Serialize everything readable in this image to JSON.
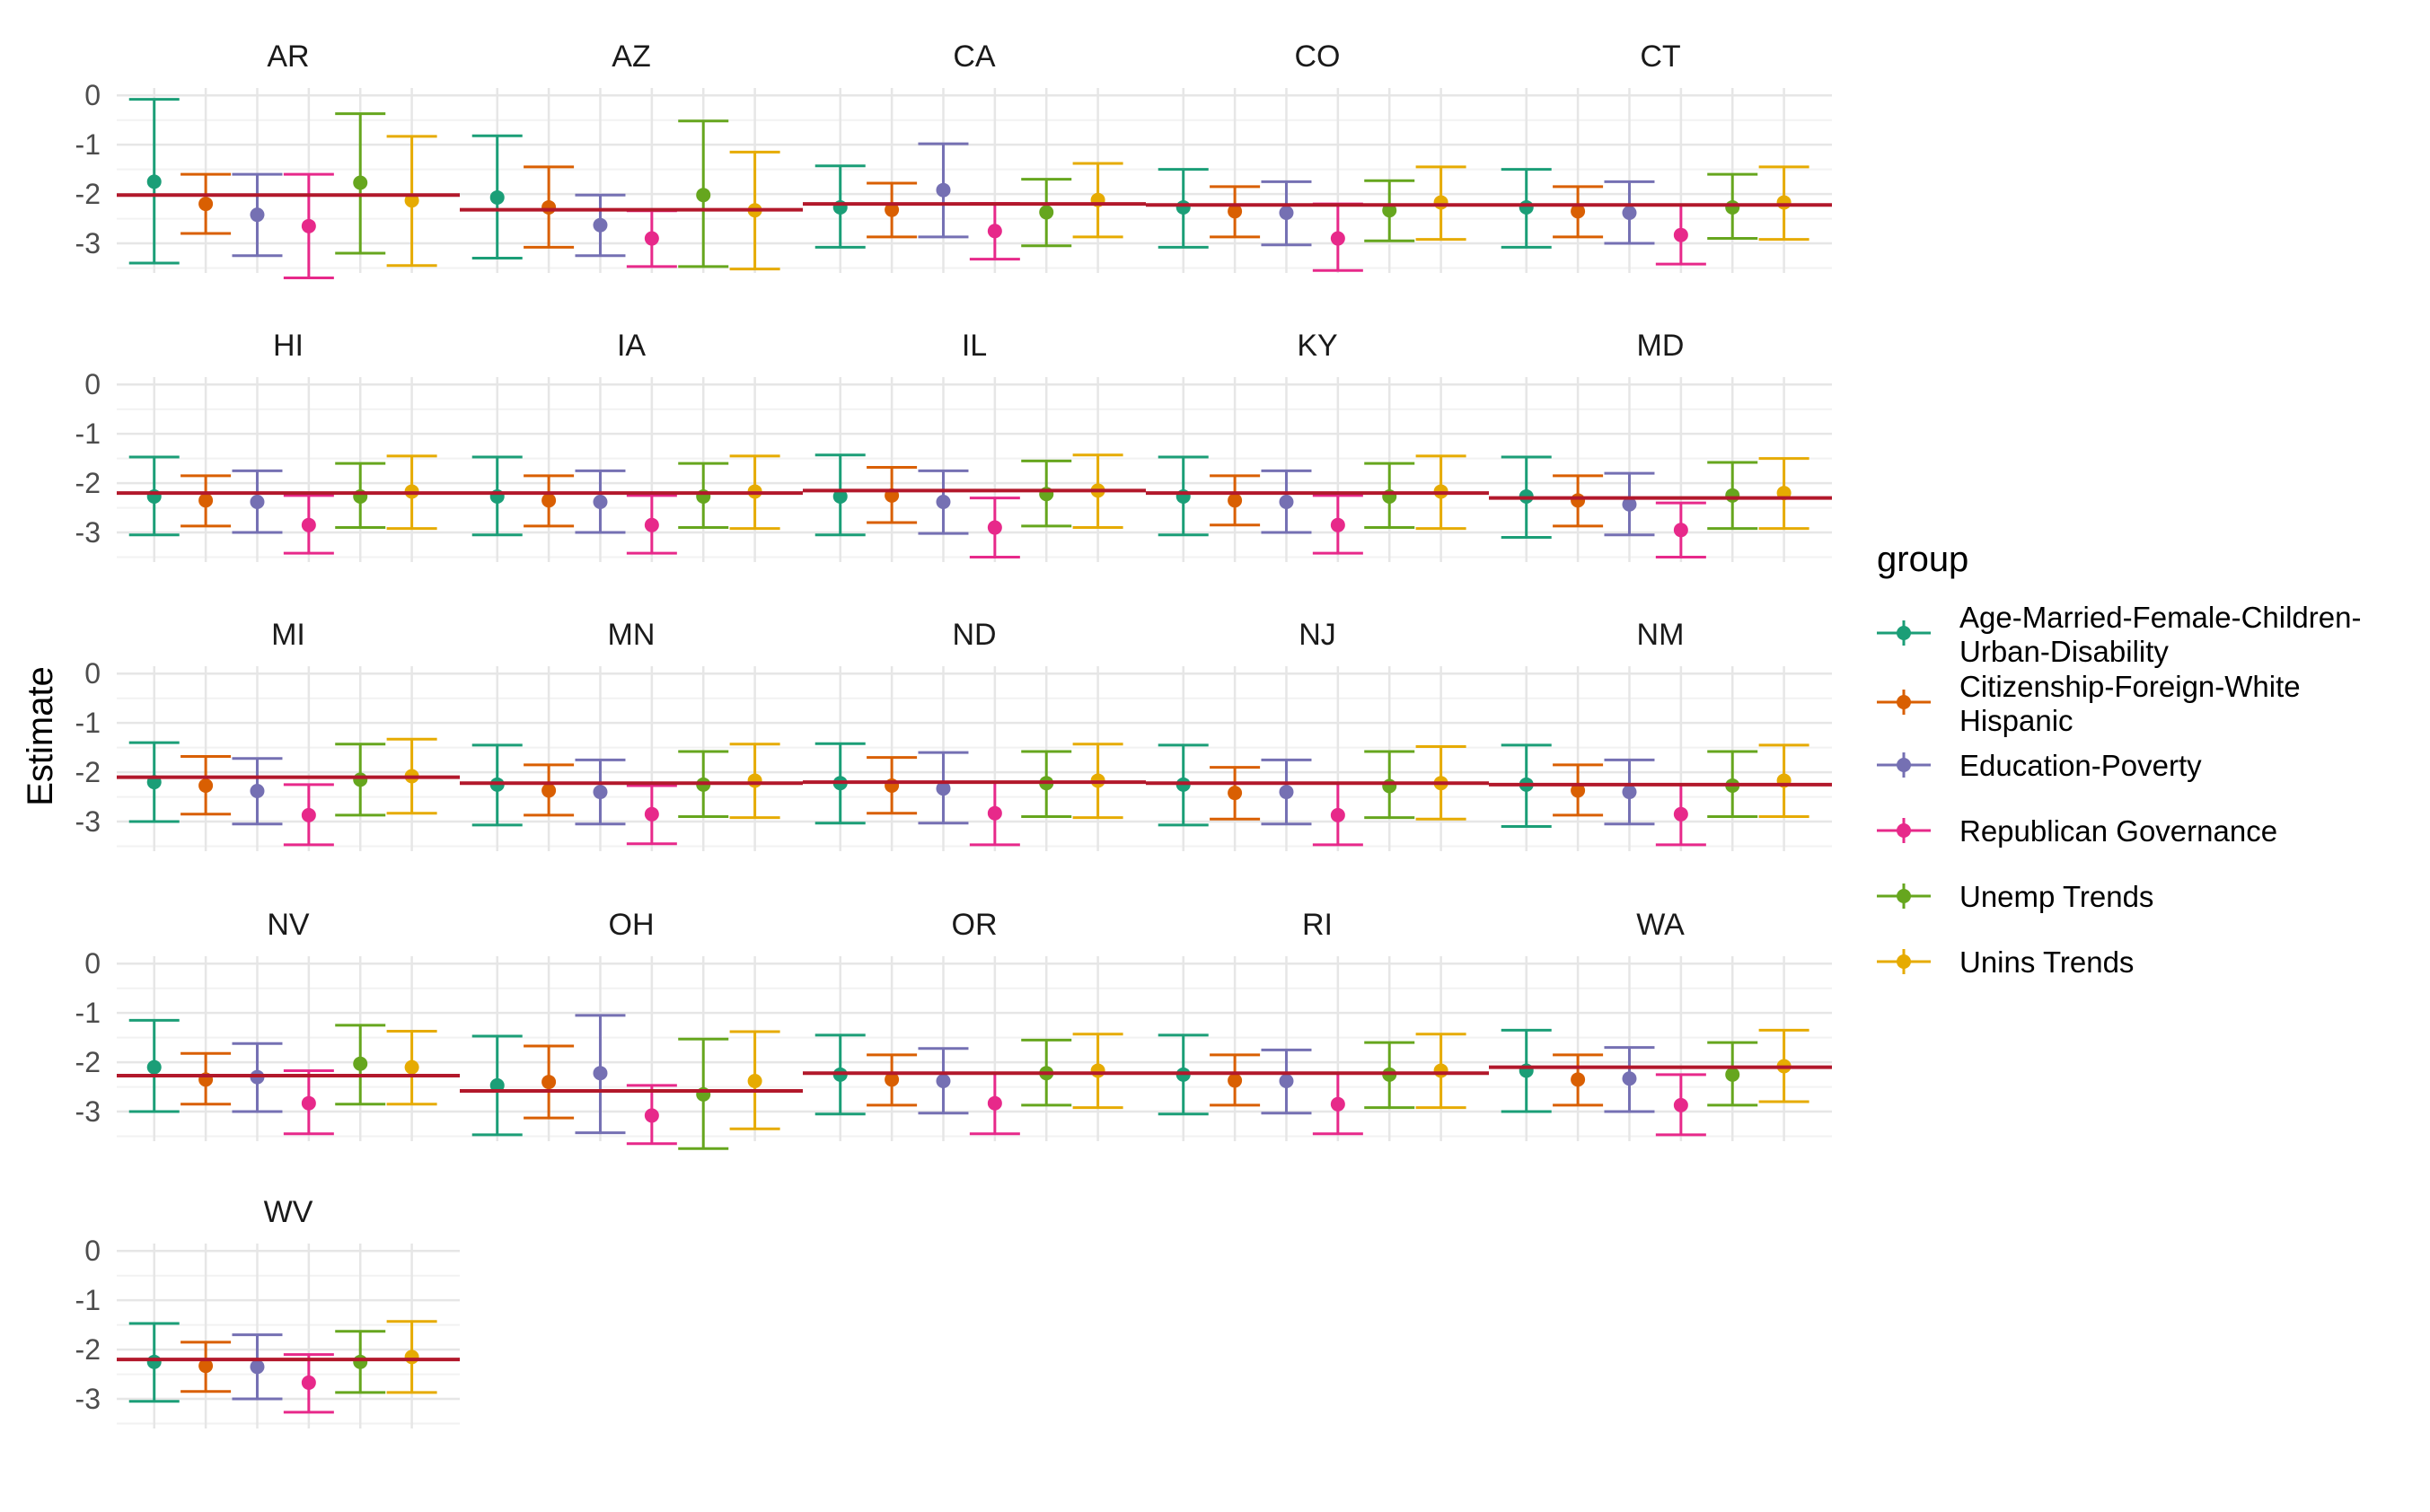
{
  "chart_data": {
    "type": "errorbar-facets",
    "ylabel": "Estimate",
    "ylim": [
      -3.6,
      0.15
    ],
    "yticks": [
      0,
      -1,
      -2,
      -3
    ],
    "ytick_labels": [
      "0",
      "-1",
      "-2",
      "-3"
    ],
    "grid": true,
    "legend": {
      "title": "group",
      "placement": "right",
      "entries": [
        {
          "lines": [
            "Age-Married-Female-Children-",
            "Urban-Disability"
          ],
          "color": "#1b9e77"
        },
        {
          "lines": [
            "Citizenship-Foreign-White",
            "Hispanic"
          ],
          "color": "#d95f02"
        },
        {
          "lines": [
            "Education-Poverty"
          ],
          "color": "#7570b3"
        },
        {
          "lines": [
            "Republican Governance"
          ],
          "color": "#e7298a"
        },
        {
          "lines": [
            "Unemp Trends"
          ],
          "color": "#66a61e"
        },
        {
          "lines": [
            "Unins Trends"
          ],
          "color": "#e6ab02"
        }
      ]
    },
    "reference_line_color": "#b2182b",
    "groups": [
      "Age-Married-Female-Children-Urban-Disability",
      "Citizenship-Foreign-White Hispanic",
      "Education-Poverty",
      "Republican Governance",
      "Unemp Trends",
      "Unins Trends"
    ],
    "facets": [
      {
        "state": "AR",
        "ref": -2.02,
        "est": [
          -1.75,
          -2.2,
          -2.42,
          -2.65,
          -1.77,
          -2.13
        ],
        "low": [
          -3.4,
          -2.8,
          -3.25,
          -3.7,
          -3.2,
          -3.45
        ],
        "high": [
          -0.08,
          -1.6,
          -1.6,
          -1.6,
          -0.37,
          -0.83
        ]
      },
      {
        "state": "AZ",
        "ref": -2.32,
        "est": [
          -2.07,
          -2.27,
          -2.63,
          -2.9,
          -2.02,
          -2.33
        ],
        "low": [
          -3.3,
          -3.08,
          -3.25,
          -3.47,
          -3.47,
          -3.52
        ],
        "high": [
          -0.82,
          -1.45,
          -2.02,
          -2.34,
          -0.52,
          -1.15
        ]
      },
      {
        "state": "CA",
        "ref": -2.2,
        "est": [
          -2.27,
          -2.32,
          -1.92,
          -2.75,
          -2.37,
          -2.12
        ],
        "low": [
          -3.08,
          -2.87,
          -2.87,
          -3.32,
          -3.05,
          -2.87
        ],
        "high": [
          -1.43,
          -1.78,
          -0.98,
          -2.19,
          -1.7,
          -1.38
        ]
      },
      {
        "state": "CO",
        "ref": -2.22,
        "est": [
          -2.27,
          -2.35,
          -2.38,
          -2.9,
          -2.33,
          -2.17
        ],
        "low": [
          -3.08,
          -2.87,
          -3.03,
          -3.55,
          -2.95,
          -2.92
        ],
        "high": [
          -1.5,
          -1.85,
          -1.75,
          -2.2,
          -1.73,
          -1.45
        ]
      },
      {
        "state": "CT",
        "ref": -2.22,
        "est": [
          -2.27,
          -2.35,
          -2.38,
          -2.83,
          -2.27,
          -2.17
        ],
        "low": [
          -3.08,
          -2.87,
          -3.0,
          -3.42,
          -2.9,
          -2.92
        ],
        "high": [
          -1.5,
          -1.85,
          -1.75,
          -2.22,
          -1.6,
          -1.45
        ]
      },
      {
        "state": "HI",
        "ref": -2.2,
        "est": [
          -2.27,
          -2.35,
          -2.38,
          -2.85,
          -2.27,
          -2.17
        ],
        "low": [
          -3.05,
          -2.87,
          -3.0,
          -3.42,
          -2.9,
          -2.92
        ],
        "high": [
          -1.47,
          -1.85,
          -1.75,
          -2.25,
          -1.6,
          -1.45
        ]
      },
      {
        "state": "IA",
        "ref": -2.2,
        "est": [
          -2.27,
          -2.35,
          -2.38,
          -2.85,
          -2.27,
          -2.17
        ],
        "low": [
          -3.05,
          -2.87,
          -3.0,
          -3.42,
          -2.9,
          -2.92
        ],
        "high": [
          -1.47,
          -1.85,
          -1.75,
          -2.25,
          -1.6,
          -1.45
        ]
      },
      {
        "state": "IL",
        "ref": -2.15,
        "est": [
          -2.27,
          -2.25,
          -2.38,
          -2.9,
          -2.22,
          -2.15
        ],
        "low": [
          -3.05,
          -2.8,
          -3.02,
          -3.5,
          -2.87,
          -2.9
        ],
        "high": [
          -1.43,
          -1.68,
          -1.75,
          -2.3,
          -1.55,
          -1.43
        ]
      },
      {
        "state": "KY",
        "ref": -2.2,
        "est": [
          -2.27,
          -2.35,
          -2.38,
          -2.85,
          -2.27,
          -2.17
        ],
        "low": [
          -3.05,
          -2.85,
          -3.0,
          -3.42,
          -2.9,
          -2.92
        ],
        "high": [
          -1.47,
          -1.85,
          -1.75,
          -2.25,
          -1.6,
          -1.45
        ]
      },
      {
        "state": "MD",
        "ref": -2.3,
        "est": [
          -2.27,
          -2.35,
          -2.43,
          -2.95,
          -2.25,
          -2.2
        ],
        "low": [
          -3.1,
          -2.87,
          -3.05,
          -3.5,
          -2.92,
          -2.92
        ],
        "high": [
          -1.47,
          -1.85,
          -1.8,
          -2.4,
          -1.58,
          -1.5
        ]
      },
      {
        "state": "MI",
        "ref": -2.1,
        "est": [
          -2.2,
          -2.27,
          -2.38,
          -2.87,
          -2.15,
          -2.08
        ],
        "low": [
          -3.0,
          -2.85,
          -3.05,
          -3.47,
          -2.87,
          -2.83
        ],
        "high": [
          -1.4,
          -1.68,
          -1.72,
          -2.25,
          -1.43,
          -1.33
        ]
      },
      {
        "state": "MN",
        "ref": -2.22,
        "est": [
          -2.25,
          -2.37,
          -2.4,
          -2.85,
          -2.25,
          -2.17
        ],
        "low": [
          -3.07,
          -2.87,
          -3.05,
          -3.45,
          -2.9,
          -2.92
        ],
        "high": [
          -1.45,
          -1.85,
          -1.75,
          -2.27,
          -1.58,
          -1.43
        ]
      },
      {
        "state": "ND",
        "ref": -2.2,
        "est": [
          -2.22,
          -2.27,
          -2.33,
          -2.83,
          -2.22,
          -2.17
        ],
        "low": [
          -3.03,
          -2.83,
          -3.03,
          -3.47,
          -2.9,
          -2.92
        ],
        "high": [
          -1.42,
          -1.7,
          -1.6,
          -2.2,
          -1.58,
          -1.43
        ]
      },
      {
        "state": "NJ",
        "ref": -2.22,
        "est": [
          -2.25,
          -2.42,
          -2.4,
          -2.87,
          -2.28,
          -2.22
        ],
        "low": [
          -3.07,
          -2.95,
          -3.05,
          -3.47,
          -2.92,
          -2.95
        ],
        "high": [
          -1.45,
          -1.9,
          -1.75,
          -2.22,
          -1.58,
          -1.48
        ]
      },
      {
        "state": "NM",
        "ref": -2.25,
        "est": [
          -2.25,
          -2.37,
          -2.4,
          -2.85,
          -2.27,
          -2.17
        ],
        "low": [
          -3.1,
          -2.87,
          -3.05,
          -3.47,
          -2.9,
          -2.9
        ],
        "high": [
          -1.45,
          -1.85,
          -1.75,
          -2.25,
          -1.58,
          -1.45
        ]
      },
      {
        "state": "NV",
        "ref": -2.27,
        "est": [
          -2.1,
          -2.35,
          -2.3,
          -2.83,
          -2.03,
          -2.1
        ],
        "low": [
          -3.0,
          -2.85,
          -3.0,
          -3.45,
          -2.85,
          -2.85
        ],
        "high": [
          -1.15,
          -1.82,
          -1.62,
          -2.17,
          -1.25,
          -1.37
        ]
      },
      {
        "state": "OH",
        "ref": -2.58,
        "est": [
          -2.47,
          -2.4,
          -2.22,
          -3.08,
          -2.65,
          -2.38
        ],
        "low": [
          -3.47,
          -3.13,
          -3.43,
          -3.65,
          -3.75,
          -3.35
        ],
        "high": [
          -1.47,
          -1.67,
          -1.05,
          -2.47,
          -1.53,
          -1.38
        ]
      },
      {
        "state": "OR",
        "ref": -2.22,
        "est": [
          -2.25,
          -2.35,
          -2.38,
          -2.83,
          -2.22,
          -2.17
        ],
        "low": [
          -3.05,
          -2.87,
          -3.03,
          -3.45,
          -2.87,
          -2.92
        ],
        "high": [
          -1.45,
          -1.85,
          -1.72,
          -2.22,
          -1.55,
          -1.43
        ]
      },
      {
        "state": "RI",
        "ref": -2.22,
        "est": [
          -2.25,
          -2.37,
          -2.38,
          -2.85,
          -2.25,
          -2.17
        ],
        "low": [
          -3.05,
          -2.87,
          -3.03,
          -3.45,
          -2.92,
          -2.92
        ],
        "high": [
          -1.45,
          -1.85,
          -1.75,
          -2.22,
          -1.6,
          -1.43
        ]
      },
      {
        "state": "WA",
        "ref": -2.1,
        "est": [
          -2.17,
          -2.35,
          -2.33,
          -2.87,
          -2.25,
          -2.08
        ],
        "low": [
          -3.0,
          -2.87,
          -3.0,
          -3.47,
          -2.87,
          -2.8
        ],
        "high": [
          -1.35,
          -1.85,
          -1.7,
          -2.25,
          -1.6,
          -1.35
        ]
      },
      {
        "state": "WV",
        "ref": -2.2,
        "est": [
          -2.25,
          -2.33,
          -2.35,
          -2.67,
          -2.25,
          -2.15
        ],
        "low": [
          -3.05,
          -2.85,
          -3.0,
          -3.27,
          -2.87,
          -2.87
        ],
        "high": [
          -1.47,
          -1.85,
          -1.7,
          -2.1,
          -1.63,
          -1.43
        ]
      }
    ]
  }
}
